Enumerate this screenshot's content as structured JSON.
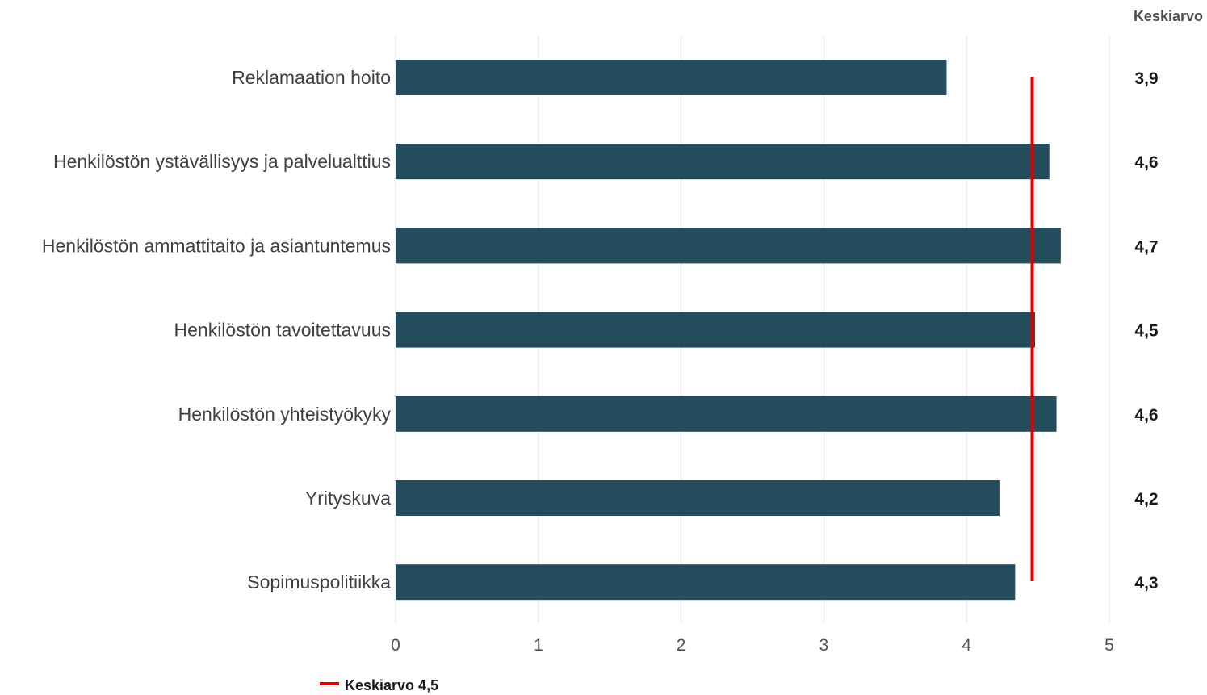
{
  "chart_data": {
    "type": "bar",
    "orientation": "horizontal",
    "categories": [
      "Reklamaation hoito",
      "Henkilöstön ystävällisyys ja palvelualttius",
      "Henkilöstön ammattitaito ja asiantuntemus",
      "Henkilöstön tavoitettavuus",
      "Henkilöstön yhteistyökyky",
      "Yrityskuva",
      "Sopimuspolitiikka"
    ],
    "values": [
      3.86,
      4.58,
      4.66,
      4.48,
      4.63,
      4.23,
      4.34
    ],
    "value_labels": [
      "3,9",
      "4,6",
      "4,7",
      "4,5",
      "4,6",
      "4,2",
      "4,3"
    ],
    "value_column_header": "Keskiarvo",
    "xlim": [
      0,
      5
    ],
    "xticks": [
      "0",
      "1",
      "2",
      "3",
      "4",
      "5"
    ],
    "reference_line": {
      "value": 4.46,
      "label": "Keskiarvo 4,5",
      "color": "#e00000"
    },
    "bar_color": "#234d5c",
    "grid": true,
    "legend_position": "bottom-left"
  }
}
